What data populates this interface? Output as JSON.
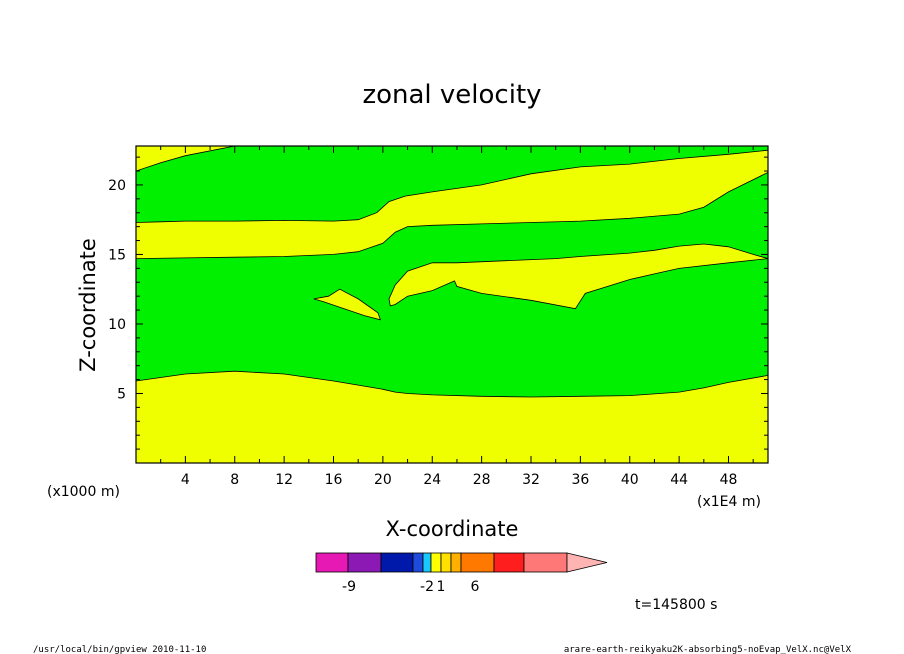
{
  "chart_data": {
    "type": "heatmap",
    "title": "zonal velocity",
    "xlabel": "X-coordinate",
    "ylabel": "Z-coordinate",
    "x_unit": "(x1E4 m)",
    "y_unit": "(x1000 m)",
    "x_ticks": [
      4,
      8,
      12,
      16,
      20,
      24,
      28,
      32,
      36,
      40,
      44,
      48
    ],
    "y_ticks": [
      5,
      10,
      15,
      20
    ],
    "xlim": [
      0,
      51.2
    ],
    "ylim": [
      0,
      22.8
    ],
    "grid": false,
    "colorbar": {
      "colors": [
        "#e619b4",
        "#8c19b4",
        "#0019aa",
        "#1f4bdc",
        "#19c8ff",
        "#ffff00",
        "#ffe000",
        "#ffb000",
        "#ff7800",
        "#ff1e1e",
        "#ff7878",
        "#ffb4b4"
      ],
      "tick_labels": [
        "-9",
        "-2",
        "1",
        "6"
      ]
    },
    "fill_colors": {
      "background": "#f0ff00",
      "green_band": "#00f000"
    },
    "regions": [
      {
        "color": "#00f000",
        "x": [
          0,
          0,
          2,
          4,
          8,
          12,
          16,
          18,
          19.5,
          20.5,
          21.8,
          24,
          28,
          32,
          36,
          40,
          44,
          48,
          51.2,
          51.2
        ],
        "top": [
          21,
          21,
          21.6,
          22.1,
          22.8,
          22.8,
          22.8,
          22.8,
          22.8,
          22.8,
          22.8,
          22.8,
          22.8,
          22.8,
          22.8,
          22.8,
          22.8,
          22.8,
          22.8,
          21
        ],
        "bottom": [
          17.3,
          17.3,
          17.35,
          17.4,
          17.4,
          17.45,
          17.4,
          17.5,
          18,
          18.8,
          19.2,
          19.5,
          20,
          20.8,
          21.3,
          21.5,
          21.9,
          22.2,
          22.5,
          21
        ]
      },
      {
        "color": "#00f000",
        "x": [
          0,
          0,
          4,
          8,
          12,
          16,
          18,
          20,
          21,
          22,
          24,
          28,
          32,
          36,
          40,
          44,
          46,
          48,
          51.2,
          51.2
        ],
        "top": [
          14.7,
          14.7,
          14.75,
          14.8,
          14.85,
          15,
          15.2,
          15.8,
          16.6,
          17,
          17.1,
          17.2,
          17.3,
          17.4,
          17.6,
          17.9,
          18.4,
          19.5,
          20.9,
          14.7
        ],
        "bottom": [
          5.9,
          5.9,
          6.4,
          6.6,
          6.4,
          5.9,
          5.6,
          5.3,
          5.1,
          5,
          4.9,
          4.8,
          4.75,
          4.8,
          4.85,
          5.1,
          5.4,
          5.8,
          6.3,
          14.7
        ]
      }
    ],
    "islands": [
      {
        "color": "#f0ff00",
        "x": [
          14.4,
          15.6,
          16.5,
          18,
          19.6,
          19.8,
          18.5,
          16.5,
          15.2,
          14.4
        ],
        "z": [
          11.8,
          12.0,
          12.5,
          11.8,
          10.8,
          10.3,
          10.6,
          11.2,
          11.6,
          11.8
        ]
      },
      {
        "color": "#f0ff00",
        "x": [
          20.5,
          21,
          22,
          24,
          26,
          30,
          34,
          36,
          40,
          42,
          44,
          46,
          48,
          50,
          51.2,
          48,
          44,
          42,
          40,
          36.4,
          35.6,
          32,
          28,
          26,
          25.8,
          24,
          22,
          21,
          20.6
        ],
        "z": [
          11.8,
          12.8,
          13.8,
          14.4,
          14.4,
          14.55,
          14.7,
          14.85,
          15.1,
          15.3,
          15.6,
          15.75,
          15.55,
          15.0,
          14.7,
          14.4,
          14,
          13.6,
          13.2,
          12.2,
          11.1,
          11.7,
          12.2,
          12.7,
          13.1,
          12.4,
          12,
          11.4,
          11.3
        ]
      }
    ],
    "time_label": "t=145800  s",
    "footer_left": "/usr/local/bin/gpview   2010-11-10",
    "footer_right": "arare-earth-reikyaku2K-absorbing5-noEvap_VelX.nc@VelX"
  }
}
